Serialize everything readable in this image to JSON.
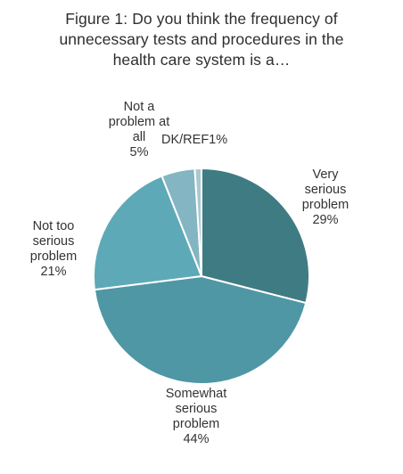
{
  "chart_data": {
    "type": "pie",
    "title_lines": [
      "Figure 1: Do you think the frequency of",
      "unnecessary tests and procedures in the",
      "health care system is a…"
    ],
    "slices": [
      {
        "label_lines": [
          "Very",
          "serious",
          "problem"
        ],
        "value": 29,
        "value_text": "29%",
        "color": "#3f7b83"
      },
      {
        "label_lines": [
          "Somewhat",
          "serious",
          "problem"
        ],
        "value": 44,
        "value_text": "44%",
        "color": "#4f97a5"
      },
      {
        "label_lines": [
          "Not too",
          "serious",
          "problem"
        ],
        "value": 21,
        "value_text": "21%",
        "color": "#5ea9b8"
      },
      {
        "label_lines": [
          "Not a",
          "problem at",
          "all"
        ],
        "value": 5,
        "value_text": "5%",
        "color": "#83b5c2"
      },
      {
        "label_lines": [
          "DK/REF"
        ],
        "value": 1,
        "value_text": "1%",
        "color": "#a9c8d0"
      }
    ]
  }
}
